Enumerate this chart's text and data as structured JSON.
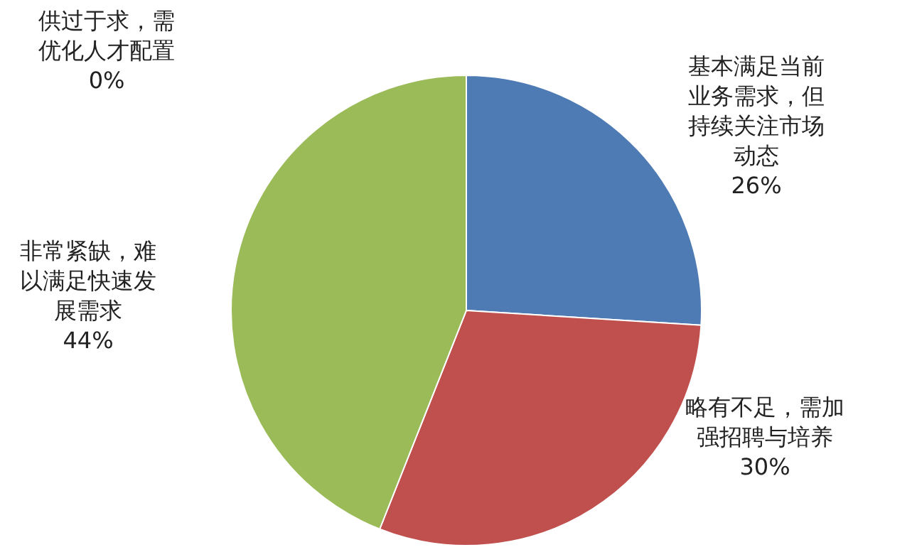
{
  "chart_data": {
    "type": "pie",
    "categories": [
      "基本满足当前业务需求，但持续关注市场动态",
      "略有不足，需加强招聘与培养",
      "非常紧缺，难以满足快速发展需求",
      "供过于求，需优化人才配置"
    ],
    "values": [
      26,
      30,
      44,
      0
    ],
    "value_labels": [
      "26%",
      "30%",
      "44%",
      "0%"
    ],
    "colors": [
      "#4f7bb5",
      "#c0504d",
      "#9bbb59",
      "#8064a2"
    ],
    "legend": false
  }
}
